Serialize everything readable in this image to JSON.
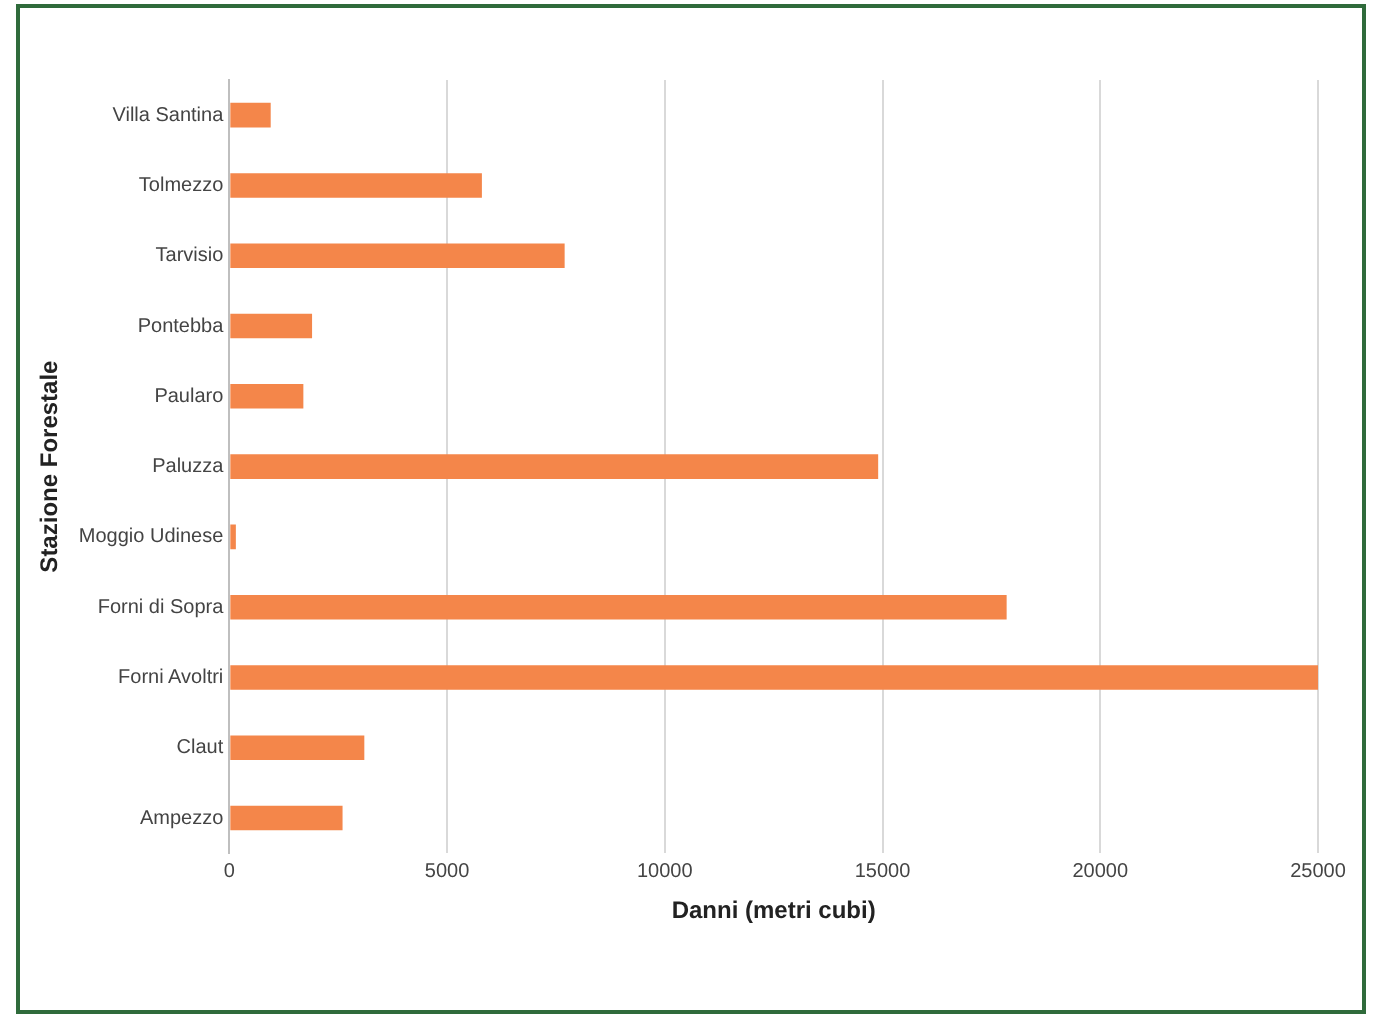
{
  "chart_data": {
    "type": "bar",
    "orientation": "horizontal",
    "xlabel": "Danni (metri cubi)",
    "ylabel": "Stazione Forestale",
    "categories": [
      "Villa Santina",
      "Tolmezzo",
      "Tarvisio",
      "Pontebba",
      "Paularo",
      "Paluzza",
      "Moggio Udinese",
      "Forni di Sopra",
      "Forni Avoltri",
      "Claut",
      "Ampezzo"
    ],
    "values": [
      950,
      5800,
      7700,
      1900,
      1700,
      14900,
      150,
      17850,
      25000,
      3100,
      2600
    ],
    "color": "#f4864a",
    "xlim": [
      0,
      25000
    ],
    "xticks": [
      0,
      5000,
      10000,
      15000,
      20000,
      25000
    ],
    "grid": "x",
    "legend": false
  }
}
